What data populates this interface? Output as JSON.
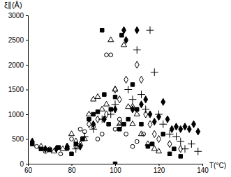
{
  "chart_data": {
    "type": "scatter",
    "x_label": "T(°C)",
    "y_label": "ξ∥(Å)",
    "xlim": [
      60,
      140
    ],
    "xticks": [
      60,
      80,
      100,
      120,
      140
    ],
    "ylim": [
      0,
      3000
    ],
    "yticks": [
      0,
      500,
      1000,
      1500,
      2000,
      2500,
      3000
    ],
    "grid": false,
    "series": [
      {
        "color": "#000000",
        "marker": "square",
        "x": [
          62,
          66,
          70,
          74,
          78,
          80,
          82,
          85,
          88,
          90,
          92,
          94,
          95,
          97,
          98,
          100,
          102,
          103,
          104,
          106,
          108,
          110,
          112,
          115,
          117,
          100,
          122,
          125,
          127,
          130
        ],
        "values": [
          400,
          300,
          280,
          330,
          320,
          200,
          400,
          500,
          900,
          1000,
          1050,
          2700,
          1400,
          800,
          1100,
          1350,
          700,
          2600,
          800,
          900,
          1600,
          1100,
          800,
          350,
          400,
          0,
          600,
          200,
          300,
          150
        ]
      },
      {
        "color": "#000000",
        "marker": "circle-open",
        "x": [
          64,
          68,
          70,
          75,
          78,
          80,
          82,
          84,
          86,
          88,
          90,
          92,
          94,
          96,
          98,
          100,
          102,
          105,
          108,
          110,
          113
        ],
        "values": [
          350,
          250,
          300,
          200,
          300,
          500,
          350,
          700,
          650,
          900,
          750,
          500,
          600,
          2200,
          2200,
          700,
          900,
          600,
          350,
          450,
          600
        ]
      },
      {
        "color": "#000000",
        "marker": "triangle-open",
        "x": [
          66,
          72,
          76,
          80,
          84,
          86,
          88,
          90,
          92,
          94,
          96,
          98,
          100,
          102,
          104,
          106,
          108,
          110,
          112,
          115,
          118,
          120
        ],
        "values": [
          350,
          250,
          300,
          600,
          400,
          500,
          1000,
          1300,
          1350,
          1100,
          1200,
          2500,
          1500,
          800,
          2400,
          1150,
          800,
          1000,
          600,
          400,
          300,
          250
        ]
      },
      {
        "color": "#000000",
        "marker": "diamond",
        "x": [
          62,
          68,
          73,
          78,
          84,
          90,
          95,
          100,
          104,
          105,
          108,
          110,
          112,
          114,
          116,
          118,
          120,
          122,
          124,
          126,
          128,
          130,
          132,
          134,
          136,
          138
        ],
        "values": [
          450,
          300,
          300,
          350,
          350,
          800,
          900,
          1100,
          2700,
          2500,
          1100,
          2700,
          1200,
          1300,
          1000,
          850,
          950,
          1250,
          900,
          700,
          750,
          700,
          750,
          700,
          800,
          650
        ]
      },
      {
        "color": "#000000",
        "marker": "diamond-open",
        "x": [
          82,
          88,
          92,
          96,
          100,
          102,
          105,
          108,
          110,
          112,
          114,
          116,
          118,
          120,
          125,
          130
        ],
        "values": [
          450,
          800,
          900,
          1000,
          1500,
          1300,
          1700,
          1150,
          2000,
          1700,
          1000,
          800,
          600,
          500,
          400,
          300
        ]
      },
      {
        "color": "#000000",
        "marker": "cross",
        "x": [
          82,
          86,
          90,
          94,
          98,
          100,
          103,
          106,
          108,
          110,
          112,
          114,
          116,
          118,
          120,
          122,
          125,
          128,
          130,
          132,
          135,
          138
        ],
        "values": [
          300,
          550,
          700,
          900,
          1000,
          1200,
          800,
          1500,
          1300,
          2300,
          1400,
          1100,
          2700,
          1850,
          1000,
          800,
          600,
          550,
          450,
          300,
          400,
          250
        ]
      }
    ]
  }
}
